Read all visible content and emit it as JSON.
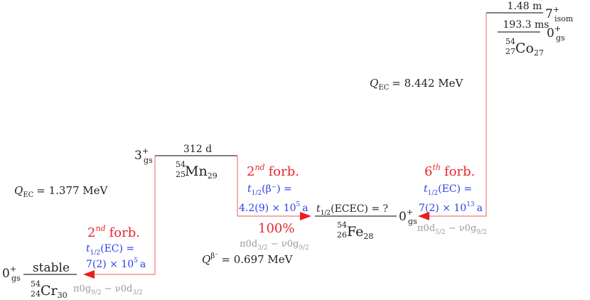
{
  "co54": {
    "isomer_halflife": "1.48 m",
    "isomer_spin": "7",
    "isomer_parity": "+",
    "isomer_tag": "isom",
    "gs_halflife": "193.3 ms",
    "gs_spin": "0",
    "gs_parity": "+",
    "gs_tag": "gs",
    "A": "54",
    "Z": "27",
    "symbol": "Co",
    "N": "27"
  },
  "q_co_ec": {
    "label": "Q",
    "sub": "EC",
    "value": "= 8.442 MeV"
  },
  "mn54": {
    "spin": "3",
    "parity": "+",
    "tag": "gs",
    "halflife": "312 d",
    "A": "54",
    "Z": "25",
    "symbol": "Mn",
    "N": "29"
  },
  "q_mn_ec": {
    "label": "Q",
    "sub": "EC",
    "value": "= 1.377 MeV"
  },
  "mn_beta": {
    "forb_order": "2",
    "forb_sup": "nd",
    "forb_word": "forb.",
    "t_label": "t",
    "t_sub": "1/2",
    "mode": "(β⁻) =",
    "value": "4.2(9) × 10",
    "exp": "5",
    "unit": "a",
    "branch": "100%"
  },
  "mn_ec": {
    "forb_order": "2",
    "forb_sup": "nd",
    "forb_word": "forb.",
    "t_label": "t",
    "t_sub": "1/2",
    "mode": "(EC) =",
    "value": "7(2) × 10",
    "exp": "5",
    "unit": "a"
  },
  "co_ec": {
    "forb_order": "6",
    "forb_sup": "th",
    "forb_word": "forb.",
    "t_label": "t",
    "t_sub": "1/2",
    "mode": "(EC) =",
    "value": "7(2) × 10",
    "exp": "13",
    "unit": "a"
  },
  "fe54": {
    "ecec_t": "t",
    "ecec_sub": "1/2",
    "ecec_mode": "(ECEC) = ?",
    "spin": "0",
    "parity": "+",
    "tag": "gs",
    "A": "54",
    "Z": "26",
    "symbol": "Fe",
    "N": "28"
  },
  "q_beta": {
    "label": "Q",
    "sub": "β⁻",
    "value": "= 0.697 MeV"
  },
  "cr54": {
    "spin": "0",
    "parity": "+",
    "tag": "gs",
    "stable": "stable",
    "A": "54",
    "Z": "24",
    "symbol": "Cr",
    "N": "30"
  },
  "config_mn_beta": {
    "p": "π0d",
    "p_sub": "3/2",
    "sep": " − ",
    "n": "ν0g",
    "n_sub": "9/2"
  },
  "config_mn_ec": {
    "p": "π0g",
    "p_sub": "9/2",
    "sep": " − ",
    "n": "ν0d",
    "n_sub": "3/2"
  },
  "config_co_ec": {
    "p": "π0d",
    "p_sub": "5/2",
    "sep": " − ",
    "n": "ν0g",
    "n_sub": "9/2"
  },
  "colors": {
    "forbidden": "#e8282e",
    "halflife": "#2a3ee8",
    "config": "#9a9a9a",
    "decay_line": "#f07b7b"
  }
}
